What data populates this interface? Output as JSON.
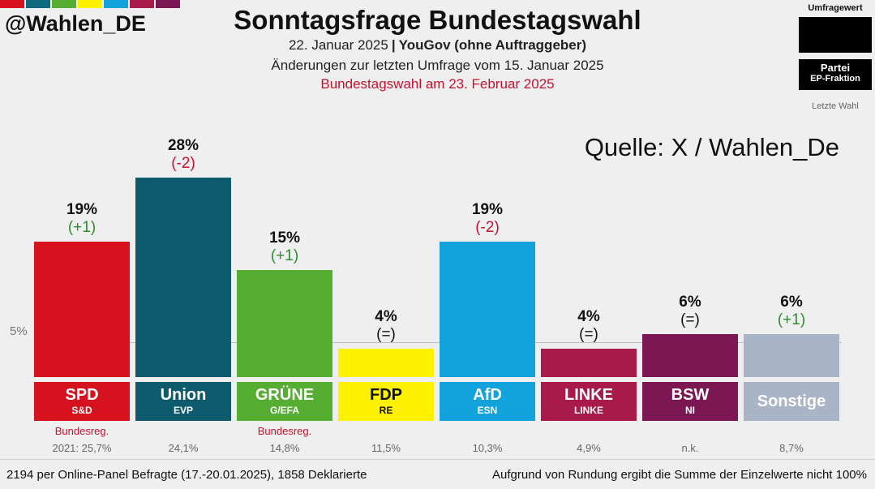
{
  "header": {
    "handle": "@Wahlen_DE",
    "title": "Sonntagsfrage Bundestagswahl",
    "date": "22. Januar 2025",
    "institute": "YouGov (ohne Auftraggeber)",
    "changes_note": "Änderungen zur letzten Umfrage vom 15. Januar 2025",
    "election_note": "Bundestagswahl am 23. Februar 2025",
    "stripe_colors": [
      "#d7121f",
      "#0f6a80",
      "#55ad32",
      "#fff200",
      "#12a3dc",
      "#a71a4a",
      "#7d1753"
    ]
  },
  "legend": {
    "value_label": "Umfragewert",
    "party_label": "Partei",
    "fraction_label": "EP-Fraktion",
    "last_label": "Letzte Wahl"
  },
  "source": "Quelle: X / Wahlen_De",
  "chart_data": {
    "type": "bar",
    "ylim": [
      0,
      30
    ],
    "reference_line": {
      "value": 5,
      "label": "5%"
    },
    "bars": [
      {
        "party": "SPD",
        "fraction": "S&D",
        "value": 19,
        "label": "19%",
        "change": "(+1)",
        "change_color": "#2e8b2e",
        "color": "#d7121f",
        "gov": "Bundesreg.",
        "last": "2021: 25,7%"
      },
      {
        "party": "Union",
        "fraction": "EVP",
        "value": 28,
        "label": "28%",
        "change": "(-2)",
        "change_color": "#c4122f",
        "color": "#0f5b6e",
        "gov": "",
        "last": "24,1%"
      },
      {
        "party": "GRÜNE",
        "fraction": "G/EFA",
        "value": 15,
        "label": "15%",
        "change": "(+1)",
        "change_color": "#2e8b2e",
        "color": "#55ad32",
        "gov": "Bundesreg.",
        "last": "14,8%"
      },
      {
        "party": "FDP",
        "fraction": "RE",
        "value": 4,
        "label": "4%",
        "change": "(=)",
        "change_color": "#111111",
        "color": "#fff200",
        "text_color": "#111111",
        "gov": "",
        "last": "11,5%"
      },
      {
        "party": "AfD",
        "fraction": "ESN",
        "value": 19,
        "label": "19%",
        "change": "(-2)",
        "change_color": "#c4122f",
        "color": "#12a3dc",
        "gov": "",
        "last": "10,3%"
      },
      {
        "party": "LINKE",
        "fraction": "LINKE",
        "value": 4,
        "label": "4%",
        "change": "(=)",
        "change_color": "#111111",
        "color": "#a71a4a",
        "gov": "",
        "last": "4,9%"
      },
      {
        "party": "BSW",
        "fraction": "NI",
        "value": 6,
        "label": "6%",
        "change": "(=)",
        "change_color": "#111111",
        "color": "#7d1753",
        "gov": "",
        "last": "n.k."
      },
      {
        "party": "Sonstige",
        "fraction": "",
        "value": 6,
        "label": "6%",
        "change": "(+1)",
        "change_color": "#2e8b2e",
        "color": "#a9b5c6",
        "gov": "",
        "last": "8,7%"
      }
    ]
  },
  "footer": {
    "sample": "2194 per Online-Panel Befragte (17.-20.01.2025), 1858 Deklarierte",
    "rounding": "Aufgrund von Rundung ergibt die Summe der Einzelwerte nicht 100%"
  }
}
